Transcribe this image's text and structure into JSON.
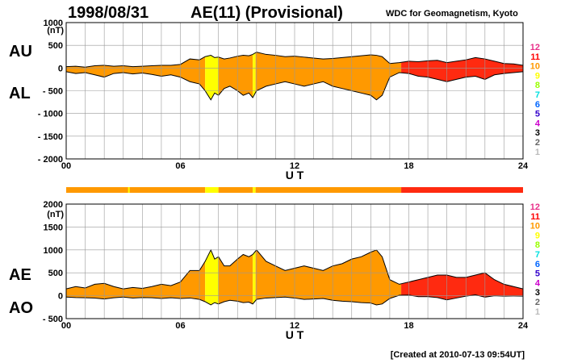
{
  "header": {
    "date": "1998/08/31",
    "title": "AE(11) (Provisional)",
    "source": "WDC for Geomagnetism, Kyoto"
  },
  "footer": {
    "created": "[Created at 2010-07-13 09:54UT]"
  },
  "legend": {
    "items": [
      {
        "label": "12",
        "color": "#e8308a"
      },
      {
        "label": "11",
        "color": "#ff0000"
      },
      {
        "label": "10",
        "color": "#ff9900"
      },
      {
        "label": "9",
        "color": "#ffff00"
      },
      {
        "label": "8",
        "color": "#99ff00"
      },
      {
        "label": "7",
        "color": "#00e0e0"
      },
      {
        "label": "6",
        "color": "#0066ff"
      },
      {
        "label": "5",
        "color": "#3300cc"
      },
      {
        "label": "4",
        "color": "#cc00cc"
      },
      {
        "label": "3",
        "color": "#000000"
      },
      {
        "label": "2",
        "color": "#666666"
      },
      {
        "label": "1",
        "color": "#bbbbbb"
      }
    ]
  },
  "colors": {
    "s10": "#ff9900",
    "s9": "#ffff00",
    "s11": "#ff2a10",
    "grid": "#999999",
    "outline": "#000000"
  },
  "chart_data": [
    {
      "type": "area",
      "name": "AU/AL",
      "series_labels": {
        "upper": "AU",
        "lower": "AL"
      },
      "ylabel": "(nT)",
      "xlabel": "U T",
      "xlim": [
        0,
        24
      ],
      "ylim": [
        -2000,
        1000
      ],
      "yticks": [
        1000,
        500,
        0,
        -500,
        -1000,
        -1500,
        -2000
      ],
      "ytick_labels": [
        "1000",
        "500",
        "0",
        "- 500",
        "- 1000",
        "- 1500",
        "- 2000"
      ],
      "xticks": [
        0,
        6,
        12,
        18,
        24
      ],
      "xtick_labels": [
        "00",
        "06",
        "12",
        "18",
        "24"
      ],
      "x": [
        0,
        0.5,
        1,
        1.5,
        2,
        2.5,
        3,
        3.5,
        4,
        4.5,
        5,
        5.5,
        6,
        6.5,
        7,
        7.3,
        7.6,
        7.8,
        8,
        8.3,
        8.6,
        9,
        9.3,
        9.6,
        9.8,
        10,
        10.5,
        11,
        11.5,
        12,
        12.5,
        13,
        13.5,
        14,
        14.5,
        15,
        15.5,
        16,
        16.3,
        16.6,
        17,
        17.5,
        18,
        18.5,
        19,
        19.5,
        20,
        20.5,
        21,
        21.5,
        22,
        22.5,
        23,
        23.5,
        24
      ],
      "series": [
        {
          "name": "AU",
          "values": [
            30,
            40,
            20,
            50,
            60,
            40,
            50,
            30,
            40,
            50,
            60,
            60,
            80,
            200,
            180,
            250,
            280,
            230,
            240,
            200,
            220,
            260,
            280,
            270,
            300,
            350,
            300,
            280,
            250,
            260,
            240,
            220,
            200,
            210,
            230,
            250,
            270,
            290,
            280,
            250,
            100,
            120,
            150,
            140,
            160,
            170,
            120,
            150,
            180,
            230,
            200,
            150,
            100,
            90,
            60
          ]
        },
        {
          "name": "AL",
          "values": [
            -80,
            -120,
            -100,
            -150,
            -200,
            -120,
            -100,
            -130,
            -110,
            -140,
            -180,
            -150,
            -200,
            -300,
            -350,
            -500,
            -700,
            -550,
            -600,
            -450,
            -400,
            -500,
            -600,
            -550,
            -650,
            -500,
            -400,
            -350,
            -300,
            -350,
            -400,
            -350,
            -300,
            -400,
            -450,
            -500,
            -550,
            -600,
            -700,
            -600,
            -200,
            -100,
            -120,
            -180,
            -200,
            -250,
            -300,
            -250,
            -200,
            -180,
            -250,
            -150,
            -120,
            -100,
            -80
          ]
        }
      ]
    },
    {
      "type": "area",
      "name": "AE/AO",
      "series_labels": {
        "upper": "AE",
        "lower": "AO"
      },
      "ylabel": "(nT)",
      "xlabel": "U T",
      "xlim": [
        0,
        24
      ],
      "ylim": [
        -500,
        2000
      ],
      "yticks": [
        2000,
        1500,
        1000,
        500,
        0,
        -500
      ],
      "ytick_labels": [
        "2000",
        "1500",
        "1000",
        "500",
        "0",
        "- 500"
      ],
      "xticks": [
        0,
        6,
        12,
        18,
        24
      ],
      "xtick_labels": [
        "00",
        "06",
        "12",
        "18",
        "24"
      ],
      "x": [
        0,
        0.5,
        1,
        1.5,
        2,
        2.5,
        3,
        3.5,
        4,
        4.5,
        5,
        5.5,
        6,
        6.5,
        7,
        7.3,
        7.6,
        7.8,
        8,
        8.3,
        8.6,
        9,
        9.3,
        9.6,
        9.8,
        10,
        10.5,
        11,
        11.5,
        12,
        12.5,
        13,
        13.5,
        14,
        14.5,
        15,
        15.5,
        16,
        16.3,
        16.6,
        17,
        17.5,
        18,
        18.5,
        19,
        19.5,
        20,
        20.5,
        21,
        21.5,
        22,
        22.5,
        23,
        23.5,
        24
      ],
      "series": [
        {
          "name": "AE",
          "values": [
            150,
            200,
            170,
            250,
            270,
            200,
            150,
            180,
            160,
            200,
            250,
            220,
            300,
            550,
            550,
            750,
            1000,
            800,
            850,
            650,
            650,
            800,
            900,
            850,
            900,
            1000,
            750,
            650,
            550,
            600,
            650,
            600,
            550,
            650,
            700,
            800,
            850,
            950,
            1000,
            850,
            350,
            250,
            300,
            350,
            400,
            450,
            450,
            400,
            400,
            450,
            500,
            350,
            250,
            200,
            150
          ]
        },
        {
          "name": "AO",
          "values": [
            -30,
            -40,
            -45,
            -50,
            -70,
            -45,
            -30,
            -50,
            -40,
            -45,
            -60,
            -45,
            -60,
            -50,
            -80,
            -130,
            -200,
            -150,
            -180,
            -130,
            -100,
            -120,
            -150,
            -140,
            -180,
            -80,
            -50,
            -40,
            -30,
            -50,
            -80,
            -70,
            -60,
            -100,
            -120,
            -130,
            -150,
            -160,
            -200,
            -180,
            -60,
            10,
            15,
            -20,
            -20,
            -40,
            -90,
            -50,
            -10,
            20,
            -30,
            0,
            -10,
            -5,
            -10
          ]
        }
      ]
    }
  ],
  "segments": [
    {
      "start": 0,
      "end": 7.3,
      "level": "s10"
    },
    {
      "start": 7.3,
      "end": 8.0,
      "level": "s9"
    },
    {
      "start": 8.0,
      "end": 9.8,
      "level": "s10"
    },
    {
      "start": 9.8,
      "end": 9.95,
      "level": "s9"
    },
    {
      "start": 9.95,
      "end": 17.6,
      "level": "s10"
    },
    {
      "start": 17.6,
      "end": 24,
      "level": "s11"
    }
  ]
}
